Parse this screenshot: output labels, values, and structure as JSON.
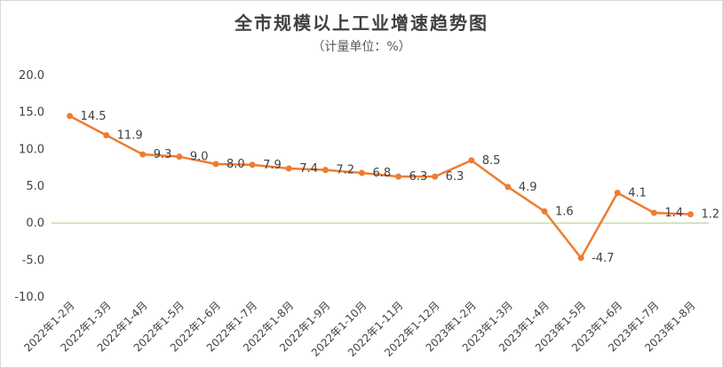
{
  "chart_data": {
    "type": "line",
    "title": "全市规模以上工业增速趋势图",
    "subtitle": "（计量单位：%）",
    "categories": [
      "2022年1-2月",
      "2022年1-3月",
      "2022年1-4月",
      "2022年1-5月",
      "2022年1-6月",
      "2022年1-7月",
      "2022年1-8月",
      "2022年1-9月",
      "2022年1-10月",
      "2022年1-11月",
      "2022年1-12月",
      "2023年1-2月",
      "2023年1-3月",
      "2023年1-4月",
      "2023年1-5月",
      "2023年1-6月",
      "2023年1-7月",
      "2023年1-8月"
    ],
    "values": [
      14.5,
      11.9,
      9.3,
      9.0,
      8.0,
      7.9,
      7.4,
      7.2,
      6.8,
      6.3,
      6.3,
      8.5,
      4.9,
      1.6,
      -4.7,
      4.1,
      1.4,
      1.2
    ],
    "value_labels": [
      "14.5",
      "11.9",
      "9.3",
      "9.0",
      "8.0",
      "7.9",
      "7.4",
      "7.2",
      "6.8",
      "6.3",
      "6.3",
      "8.5",
      "4.9",
      "1.6",
      "-4.7",
      "4.1",
      "1.4",
      "1.2"
    ],
    "ylim": [
      -10,
      20
    ],
    "yticks": [
      "20.0",
      "15.0",
      "10.0",
      "5.0",
      "0.0",
      "-5.0",
      "-10.0"
    ],
    "ytick_values": [
      20,
      15,
      10,
      5,
      0,
      -5,
      -10
    ],
    "line_color": "#ed7d31",
    "zero_line_color": "#a9d18e",
    "grid": false,
    "legend": "none"
  }
}
